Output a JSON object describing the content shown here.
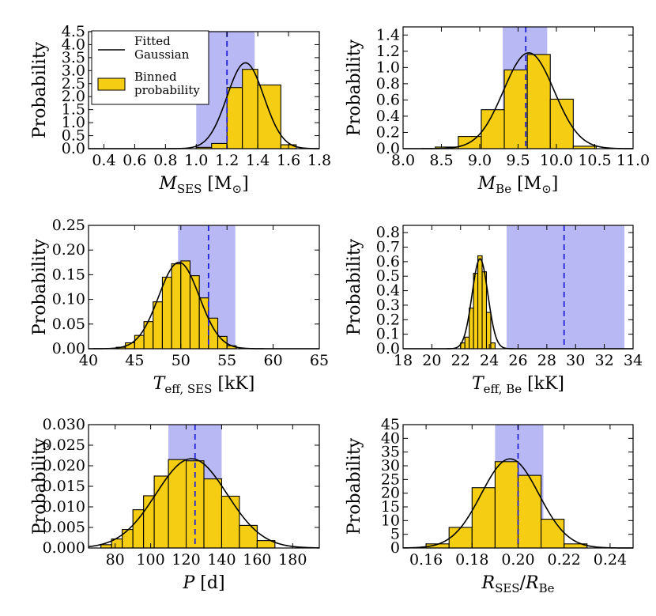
{
  "legend": {
    "gaussian_label_line1": "Fitted",
    "gaussian_label_line2": "Gaussian",
    "binned_label_line1": "Binned",
    "binned_label_line2": "probability"
  },
  "colors": {
    "bar_fill": "#F5CE14",
    "bar_edge": "#000000",
    "band_fill": "#B8B8F5",
    "dashed_line": "#2222DD",
    "curve": "#000000"
  },
  "chart_data": [
    {
      "type": "bar",
      "id": "m_ses",
      "ylabel": "Probability",
      "xlabel": {
        "main": "M",
        "sub": "SES",
        "unit": " [M",
        "unit_sub": "⊙",
        "close": "]"
      },
      "xlim": [
        0.3,
        1.8
      ],
      "ylim": [
        0,
        4.5
      ],
      "xticks": [
        "0.4",
        "0.6",
        "0.8",
        "1.0",
        "1.2",
        "1.4",
        "1.6",
        "1.8"
      ],
      "yticks": [
        "0.0",
        "0.5",
        "1.0",
        "1.5",
        "2.0",
        "2.5",
        "3.0",
        "3.5",
        "4.0",
        "4.5"
      ],
      "bins": [
        [
          1.0,
          1.1,
          0.05
        ],
        [
          1.1,
          1.2,
          0.2
        ],
        [
          1.2,
          1.3,
          2.35
        ],
        [
          1.3,
          1.4,
          3.05
        ],
        [
          1.4,
          1.55,
          2.45
        ],
        [
          1.55,
          1.65,
          0.15
        ]
      ],
      "band": [
        1.0,
        1.38
      ],
      "dashed": 1.2,
      "gaussian": {
        "mu": 1.32,
        "sigma": 0.12,
        "peak": 3.3
      },
      "legend": true
    },
    {
      "type": "bar",
      "id": "m_be",
      "ylabel": "Probability",
      "xlabel": {
        "main": "M",
        "sub": "Be",
        "unit": " [M",
        "unit_sub": "⊙",
        "close": "]"
      },
      "xlim": [
        8.0,
        11.0
      ],
      "ylim": [
        0,
        1.5
      ],
      "xticks": [
        "8.0",
        "8.5",
        "9.0",
        "9.5",
        "10.0",
        "10.5",
        "11.0"
      ],
      "yticks": [
        "0.0",
        "0.2",
        "0.4",
        "0.6",
        "0.8",
        "1.0",
        "1.2",
        "1.4"
      ],
      "bins": [
        [
          8.42,
          8.72,
          0.02
        ],
        [
          8.72,
          9.02,
          0.15
        ],
        [
          9.02,
          9.32,
          0.48
        ],
        [
          9.32,
          9.62,
          0.97
        ],
        [
          9.62,
          9.92,
          1.16
        ],
        [
          9.92,
          10.22,
          0.61
        ],
        [
          10.22,
          10.52,
          0.03
        ]
      ],
      "band": [
        9.3,
        9.88
      ],
      "dashed": 9.6,
      "gaussian": {
        "mu": 9.64,
        "sigma": 0.33,
        "peak": 1.18
      }
    },
    {
      "type": "bar",
      "id": "teff_ses",
      "ylabel": "Probability",
      "xlabel": {
        "main": "T",
        "sub": "eff, SES",
        "unit": " [kK]",
        "unit_sub": "",
        "close": ""
      },
      "xlim": [
        40,
        65
      ],
      "ylim": [
        0,
        0.25
      ],
      "xticks": [
        "40",
        "45",
        "50",
        "55",
        "60",
        "65"
      ],
      "yticks": [
        "0.00",
        "0.05",
        "0.10",
        "0.15",
        "0.20",
        "0.25"
      ],
      "bins": [
        [
          43,
          44,
          0.003
        ],
        [
          44,
          45,
          0.012
        ],
        [
          45,
          46,
          0.027
        ],
        [
          46,
          47,
          0.055
        ],
        [
          47,
          48,
          0.095
        ],
        [
          48,
          49,
          0.145
        ],
        [
          49,
          50,
          0.172
        ],
        [
          50,
          51,
          0.178
        ],
        [
          51,
          52,
          0.148
        ],
        [
          52,
          53,
          0.103
        ],
        [
          53,
          54,
          0.062
        ],
        [
          54,
          55,
          0.025
        ],
        [
          55,
          56,
          0.006
        ]
      ],
      "band": [
        49.7,
        55.9
      ],
      "dashed": 53.0,
      "gaussian": {
        "mu": 49.8,
        "sigma": 2.2,
        "peak": 0.175
      }
    },
    {
      "type": "bar",
      "id": "teff_be",
      "ylabel": "Probability",
      "xlabel": {
        "main": "T",
        "sub": "eff, Be",
        "unit": " [kK]",
        "unit_sub": "",
        "close": ""
      },
      "xlim": [
        18,
        34
      ],
      "ylim": [
        0,
        0.85
      ],
      "xticks": [
        "18",
        "20",
        "22",
        "24",
        "26",
        "28",
        "30",
        "32",
        "34"
      ],
      "yticks": [
        "0.0",
        "0.1",
        "0.2",
        "0.3",
        "0.4",
        "0.5",
        "0.6",
        "0.7",
        "0.8"
      ],
      "bins": [
        [
          22.0,
          22.3,
          0.04
        ],
        [
          22.3,
          22.6,
          0.08
        ],
        [
          22.6,
          22.9,
          0.28
        ],
        [
          22.9,
          23.2,
          0.52
        ],
        [
          23.2,
          23.5,
          0.64
        ],
        [
          23.5,
          23.8,
          0.53
        ],
        [
          23.8,
          24.1,
          0.25
        ],
        [
          24.1,
          24.4,
          0.04
        ]
      ],
      "band": [
        25.2,
        33.4
      ],
      "dashed": 29.2,
      "gaussian": {
        "mu": 23.35,
        "sigma": 0.55,
        "peak": 0.62
      }
    },
    {
      "type": "bar",
      "id": "period",
      "ylabel": "Probability",
      "xlabel": {
        "main": "P",
        "sub": "",
        "unit": " [d]",
        "unit_sub": "",
        "close": ""
      },
      "xlim": [
        65,
        195
      ],
      "ylim": [
        0,
        0.03
      ],
      "xticks": [
        "80",
        "100",
        "120",
        "140",
        "160",
        "180"
      ],
      "yticks": [
        "0.000",
        "0.005",
        "0.010",
        "0.015",
        "0.020",
        "0.025",
        "0.030"
      ],
      "bins": [
        [
          72,
          78,
          0.0008
        ],
        [
          78,
          84,
          0.0022
        ],
        [
          84,
          90,
          0.0045
        ],
        [
          90,
          96,
          0.0093
        ],
        [
          96,
          102,
          0.0127
        ],
        [
          102,
          110,
          0.0175
        ],
        [
          110,
          120,
          0.0215
        ],
        [
          120,
          130,
          0.0212
        ],
        [
          130,
          140,
          0.0168
        ],
        [
          140,
          150,
          0.0126
        ],
        [
          150,
          160,
          0.0055
        ],
        [
          160,
          170,
          0.0018
        ]
      ],
      "band": [
        110,
        140
      ],
      "dashed": 125,
      "gaussian": {
        "mu": 123,
        "sigma": 20,
        "peak": 0.0217
      }
    },
    {
      "type": "bar",
      "id": "radius_ratio",
      "ylabel": "Probability",
      "xlabel": {
        "main": "R",
        "sub": "SES",
        "unit": "/",
        "unit_sub": "",
        "close": "",
        "main2": "R",
        "sub2": "Be"
      },
      "xlim": [
        0.15,
        0.25
      ],
      "ylim": [
        0,
        45
      ],
      "xticks": [
        "0.16",
        "0.18",
        "0.20",
        "0.22",
        "0.24"
      ],
      "yticks": [
        "0",
        "5",
        "10",
        "15",
        "20",
        "25",
        "30",
        "35",
        "40",
        "45"
      ],
      "bins": [
        [
          0.16,
          0.17,
          1.5
        ],
        [
          0.17,
          0.18,
          7.5
        ],
        [
          0.18,
          0.19,
          22.0
        ],
        [
          0.19,
          0.2,
          31.5
        ],
        [
          0.2,
          0.21,
          26.5
        ],
        [
          0.21,
          0.22,
          10.5
        ],
        [
          0.22,
          0.23,
          1.5
        ]
      ],
      "band": [
        0.19,
        0.211
      ],
      "dashed": 0.2,
      "gaussian": {
        "mu": 0.1965,
        "sigma": 0.0125,
        "peak": 32.5
      }
    }
  ]
}
